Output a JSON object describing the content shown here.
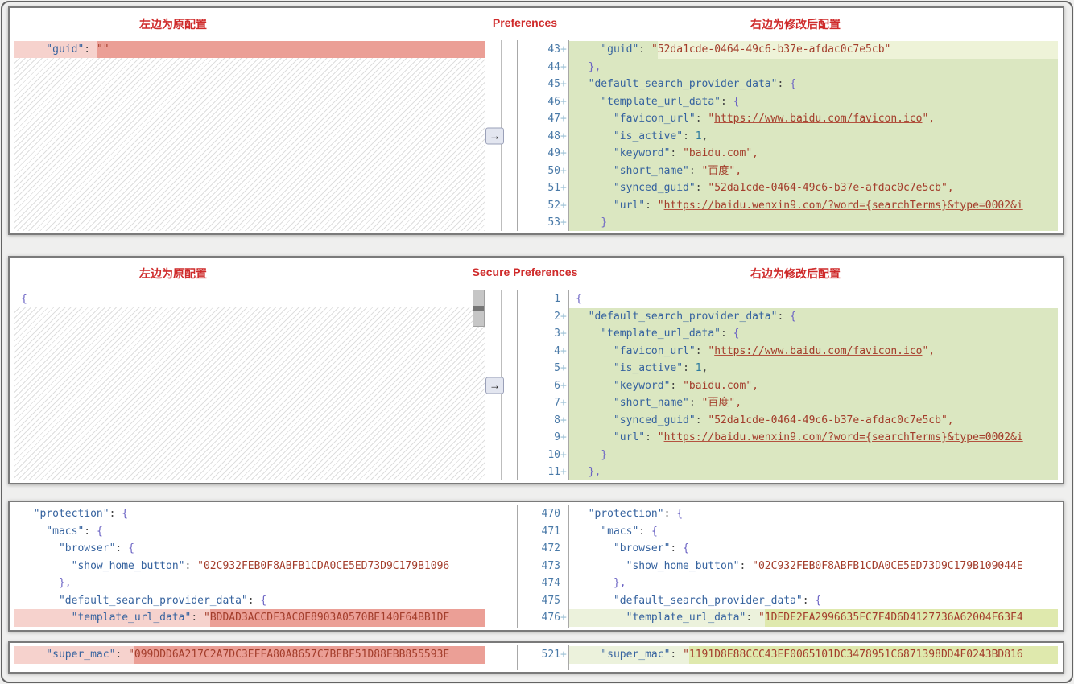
{
  "labels": {
    "left_note": "左边为原配置",
    "right_note": "右边为修改后配置",
    "arrow": "→"
  },
  "colors": {
    "annotation_red": "#cf2b2b",
    "addition_line_bg": "#dbe7c1",
    "addition_pale_bg": "#ecf2dc",
    "addition_strong_bg": "#dfe9ad",
    "deletion_light_bg": "#f6d2cd",
    "deletion_strong_bg": "#eb9f96",
    "key_blue": "#36639f",
    "value_red": "#a33d2b",
    "line_number_blue": "#4a7aa8"
  },
  "panels": [
    {
      "name": "preferences-diff",
      "header": {
        "left": "左边为原配置",
        "center": "Preferences",
        "right": "右边为修改后配置"
      },
      "arrow": true,
      "left_hatch": true,
      "left_scrollbar": false,
      "left_lines": [
        {
          "bg": "pl",
          "fill": "ps",
          "seg": [
            [
              "    \"guid\"",
              "k"
            ],
            [
              ": ",
              "d"
            ],
            [
              "\"\"",
              "s",
              "ps"
            ]
          ]
        }
      ],
      "right_lines": [
        {
          "n": "43",
          "p": true,
          "bg": "g",
          "fill": "gl",
          "seg": [
            [
              "    \"guid\"",
              "k"
            ],
            [
              ": ",
              "d"
            ],
            [
              "\"",
              "s"
            ],
            [
              "52da1cde-0464-49c6-b37e-afdac0c7e5cb\"",
              "s",
              "gl"
            ]
          ]
        },
        {
          "n": "44",
          "p": true,
          "bg": "g",
          "seg": [
            [
              "  ",
              "d"
            ],
            [
              "},",
              "b"
            ]
          ]
        },
        {
          "n": "45",
          "p": true,
          "bg": "g",
          "seg": [
            [
              "  \"default_search_provider_data\"",
              "k"
            ],
            [
              ": ",
              "d"
            ],
            [
              "{",
              "b"
            ]
          ]
        },
        {
          "n": "46",
          "p": true,
          "bg": "g",
          "seg": [
            [
              "    \"template_url_data\"",
              "k"
            ],
            [
              ": ",
              "d"
            ],
            [
              "{",
              "b"
            ]
          ]
        },
        {
          "n": "47",
          "p": true,
          "bg": "g",
          "seg": [
            [
              "      \"favicon_url\"",
              "k"
            ],
            [
              ": ",
              "d"
            ],
            [
              "\"",
              "s"
            ],
            [
              "https://www.baidu.com/favicon.ico",
              "s u"
            ],
            [
              "\",",
              "s"
            ]
          ]
        },
        {
          "n": "48",
          "p": true,
          "bg": "g",
          "seg": [
            [
              "      \"is_active\"",
              "k"
            ],
            [
              ": ",
              "d"
            ],
            [
              "1",
              "n"
            ],
            [
              ",",
              "d"
            ]
          ]
        },
        {
          "n": "49",
          "p": true,
          "bg": "g",
          "seg": [
            [
              "      \"keyword\"",
              "k"
            ],
            [
              ": ",
              "d"
            ],
            [
              "\"baidu.com\",",
              "s"
            ]
          ]
        },
        {
          "n": "50",
          "p": true,
          "bg": "g",
          "seg": [
            [
              "      \"short_name\"",
              "k"
            ],
            [
              ": ",
              "d"
            ],
            [
              "\"百度\",",
              "s"
            ]
          ]
        },
        {
          "n": "51",
          "p": true,
          "bg": "g",
          "seg": [
            [
              "      \"synced_guid\"",
              "k"
            ],
            [
              ": ",
              "d"
            ],
            [
              "\"52da1cde-0464-49c6-b37e-afdac0c7e5cb\",",
              "s"
            ]
          ]
        },
        {
          "n": "52",
          "p": true,
          "bg": "g",
          "seg": [
            [
              "      \"url\"",
              "k"
            ],
            [
              ": ",
              "d"
            ],
            [
              "\"",
              "s"
            ],
            [
              "https://baidu.wenxin9.com/?word={searchTerms}&type=0002&i",
              "s u"
            ]
          ]
        },
        {
          "n": "53",
          "p": true,
          "bg": "g",
          "seg": [
            [
              "    ",
              "d"
            ],
            [
              "}",
              "b"
            ]
          ]
        }
      ]
    },
    {
      "name": "secure-preferences-diff",
      "header": {
        "left": "左边为原配置",
        "center": "Secure Preferences",
        "right": "右边为修改后配置"
      },
      "arrow": true,
      "left_hatch": true,
      "left_scrollbar": true,
      "left_lines": [
        {
          "seg": [
            [
              "{",
              "b"
            ]
          ]
        }
      ],
      "right_lines": [
        {
          "n": "1",
          "p": false,
          "seg": [
            [
              "{",
              "b"
            ]
          ]
        },
        {
          "n": "2",
          "p": true,
          "bg": "g",
          "seg": [
            [
              "  \"default_search_provider_data\"",
              "k"
            ],
            [
              ": ",
              "d"
            ],
            [
              "{",
              "b"
            ]
          ]
        },
        {
          "n": "3",
          "p": true,
          "bg": "g",
          "seg": [
            [
              "    \"template_url_data\"",
              "k"
            ],
            [
              ": ",
              "d"
            ],
            [
              "{",
              "b"
            ]
          ]
        },
        {
          "n": "4",
          "p": true,
          "bg": "g",
          "seg": [
            [
              "      \"favicon_url\"",
              "k"
            ],
            [
              ": ",
              "d"
            ],
            [
              "\"",
              "s"
            ],
            [
              "https://www.baidu.com/favicon.ico",
              "s u"
            ],
            [
              "\",",
              "s"
            ]
          ]
        },
        {
          "n": "5",
          "p": true,
          "bg": "g",
          "seg": [
            [
              "      \"is_active\"",
              "k"
            ],
            [
              ": ",
              "d"
            ],
            [
              "1",
              "n"
            ],
            [
              ",",
              "d"
            ]
          ]
        },
        {
          "n": "6",
          "p": true,
          "bg": "g",
          "seg": [
            [
              "      \"keyword\"",
              "k"
            ],
            [
              ": ",
              "d"
            ],
            [
              "\"baidu.com\",",
              "s"
            ]
          ]
        },
        {
          "n": "7",
          "p": true,
          "bg": "g",
          "seg": [
            [
              "      \"short_name\"",
              "k"
            ],
            [
              ": ",
              "d"
            ],
            [
              "\"百度\",",
              "s"
            ]
          ]
        },
        {
          "n": "8",
          "p": true,
          "bg": "g",
          "seg": [
            [
              "      \"synced_guid\"",
              "k"
            ],
            [
              ": ",
              "d"
            ],
            [
              "\"52da1cde-0464-49c6-b37e-afdac0c7e5cb\",",
              "s"
            ]
          ]
        },
        {
          "n": "9",
          "p": true,
          "bg": "g",
          "seg": [
            [
              "      \"url\"",
              "k"
            ],
            [
              ": ",
              "d"
            ],
            [
              "\"",
              "s"
            ],
            [
              "https://baidu.wenxin9.com/?word={searchTerms}&type=0002&i",
              "s u"
            ]
          ]
        },
        {
          "n": "10",
          "p": true,
          "bg": "g",
          "seg": [
            [
              "    ",
              "d"
            ],
            [
              "}",
              "b"
            ]
          ]
        },
        {
          "n": "11",
          "p": true,
          "bg": "g",
          "seg": [
            [
              "  ",
              "d"
            ],
            [
              "},",
              "b"
            ]
          ]
        }
      ]
    },
    {
      "name": "protection-macs-diff",
      "header": null,
      "arrow": false,
      "left_hatch": false,
      "left_scrollbar": false,
      "left_lines": [
        {
          "seg": [
            [
              "  \"protection\"",
              "k"
            ],
            [
              ": ",
              "d"
            ],
            [
              "{",
              "b"
            ]
          ]
        },
        {
          "seg": [
            [
              "    \"macs\"",
              "k"
            ],
            [
              ": ",
              "d"
            ],
            [
              "{",
              "b"
            ]
          ]
        },
        {
          "seg": [
            [
              "      \"browser\"",
              "k"
            ],
            [
              ": ",
              "d"
            ],
            [
              "{",
              "b"
            ]
          ]
        },
        {
          "seg": [
            [
              "        \"show_home_button\"",
              "k"
            ],
            [
              ": ",
              "d"
            ],
            [
              "\"02C932FEB0F8ABFB1CDA0CE5ED73D9C179B1096",
              "s"
            ]
          ]
        },
        {
          "seg": [
            [
              "      ",
              "d"
            ],
            [
              "},",
              "b"
            ]
          ]
        },
        {
          "seg": [
            [
              "      \"default_search_provider_data\"",
              "k"
            ],
            [
              ": ",
              "d"
            ],
            [
              "{",
              "b"
            ]
          ]
        },
        {
          "bg": "pl",
          "fill": "ps",
          "seg": [
            [
              "        \"template_url_data\"",
              "k"
            ],
            [
              ": ",
              "d"
            ],
            [
              "\"",
              "s"
            ],
            [
              "BDDAD3ACCDF3AC0E8903A0570BE140F64BB1DF",
              "s",
              "ps"
            ]
          ]
        }
      ],
      "right_lines": [
        {
          "n": "470",
          "p": false,
          "seg": [
            [
              "  \"protection\"",
              "k"
            ],
            [
              ": ",
              "d"
            ],
            [
              "{",
              "b"
            ]
          ]
        },
        {
          "n": "471",
          "p": false,
          "seg": [
            [
              "    \"macs\"",
              "k"
            ],
            [
              ": ",
              "d"
            ],
            [
              "{",
              "b"
            ]
          ]
        },
        {
          "n": "472",
          "p": false,
          "seg": [
            [
              "      \"browser\"",
              "k"
            ],
            [
              ": ",
              "d"
            ],
            [
              "{",
              "b"
            ]
          ]
        },
        {
          "n": "473",
          "p": false,
          "seg": [
            [
              "        \"show_home_button\"",
              "k"
            ],
            [
              ": ",
              "d"
            ],
            [
              "\"02C932FEB0F8ABFB1CDA0CE5ED73D9C179B109044E",
              "s"
            ]
          ]
        },
        {
          "n": "474",
          "p": false,
          "seg": [
            [
              "      ",
              "d"
            ],
            [
              "},",
              "b"
            ]
          ]
        },
        {
          "n": "475",
          "p": false,
          "seg": [
            [
              "      \"default_search_provider_data\"",
              "k"
            ],
            [
              ": ",
              "d"
            ],
            [
              "{",
              "b"
            ]
          ]
        },
        {
          "n": "476",
          "p": true,
          "bg": "gp",
          "fill": "gs",
          "seg": [
            [
              "        \"template_url_data\"",
              "k"
            ],
            [
              ": ",
              "d"
            ],
            [
              "\"",
              "s"
            ],
            [
              "1DEDE2FA2996635FC7F4D6D4127736A62004F63F4",
              "s",
              "gs"
            ]
          ]
        }
      ]
    },
    {
      "name": "super-mac-diff",
      "header": null,
      "arrow": false,
      "left_hatch": false,
      "left_scrollbar": false,
      "left_lines": [
        {
          "bg": "pl",
          "fill": "ps",
          "seg": [
            [
              "    \"super_mac\"",
              "k"
            ],
            [
              ": ",
              "d"
            ],
            [
              "\"",
              "s"
            ],
            [
              "099DDD6A217C2A7DC3EFFA80A8657C7BEBF51D88EBB855593E",
              "s",
              "ps"
            ]
          ]
        }
      ],
      "right_lines": [
        {
          "n": "521",
          "p": true,
          "bg": "gp",
          "fill": "gs",
          "seg": [
            [
              "    \"super_mac\"",
              "k"
            ],
            [
              ": ",
              "d"
            ],
            [
              "\"",
              "s"
            ],
            [
              "1191D8E88CCC43EF0065101DC3478951C6871398DD4F0243BD816",
              "s",
              "gs"
            ]
          ]
        }
      ]
    }
  ]
}
